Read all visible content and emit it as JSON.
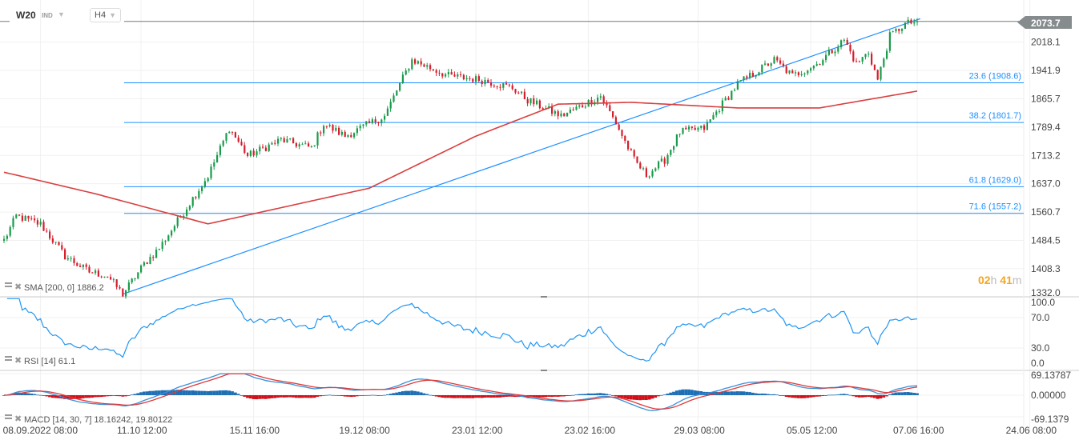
{
  "header": {
    "symbol": "W20",
    "type": "IND",
    "timeframe": "H4"
  },
  "countdown": {
    "hours": "02",
    "h": "h",
    "minutes": "41",
    "m": "m"
  },
  "last_price_label": "2073.7",
  "legends": {
    "sma": "SMA [200, 0] 1886.2",
    "rsi": "RSI [14] 61.1",
    "macd": "MACD [14, 30, 7] 18.16242, 19.80122"
  },
  "colors": {
    "up": "#1a9b4b",
    "down": "#d61e2d",
    "sma": "#d93f3f",
    "rsi": "#2196f3",
    "fib": "#1e90ff",
    "macd": "#3a8fd8",
    "signal": "#e03a3a"
  },
  "chart_data": [
    {
      "type": "candlestick",
      "title": "W20 H4",
      "ylim": [
        1332.0,
        2073.7
      ],
      "y_ticks": [
        "2018.1",
        "1941.9",
        "1865.7",
        "1789.4",
        "1713.2",
        "1637.0",
        "1560.7",
        "1484.5",
        "1408.3",
        "1332.0"
      ],
      "y_tick_values": [
        2018.1,
        1941.9,
        1865.7,
        1789.4,
        1713.2,
        1637.0,
        1560.7,
        1484.5,
        1408.3,
        1332.0
      ],
      "x_ticks": [
        "08.09.2022  08:00",
        "11.10  12:00",
        "15.11  16:00",
        "19.12  08:00",
        "23.01  12:00",
        "23.02  16:00",
        "29.03  08:00",
        "05.05  12:00",
        "07.06  16:00",
        "24.06  08:00"
      ],
      "x_tick_bars": [
        12,
        45,
        82,
        118,
        155,
        192,
        228,
        265,
        300,
        337
      ],
      "bars": 301,
      "price_path": [
        [
          0,
          1485
        ],
        [
          4,
          1550
        ],
        [
          12,
          1528
        ],
        [
          20,
          1442
        ],
        [
          28,
          1400
        ],
        [
          34,
          1389
        ],
        [
          39,
          1340
        ],
        [
          46,
          1421
        ],
        [
          51,
          1464
        ],
        [
          59,
          1561
        ],
        [
          67,
          1658
        ],
        [
          74,
          1787
        ],
        [
          80,
          1712
        ],
        [
          91,
          1755
        ],
        [
          101,
          1733
        ],
        [
          105,
          1798
        ],
        [
          112,
          1765
        ],
        [
          125,
          1819
        ],
        [
          130,
          1905
        ],
        [
          134,
          1970
        ],
        [
          146,
          1927
        ],
        [
          157,
          1916
        ],
        [
          167,
          1895
        ],
        [
          172,
          1862
        ],
        [
          183,
          1819
        ],
        [
          196,
          1873
        ],
        [
          201,
          1800
        ],
        [
          207,
          1701
        ],
        [
          211,
          1660
        ],
        [
          217,
          1701
        ],
        [
          222,
          1776
        ],
        [
          230,
          1786
        ],
        [
          236,
          1852
        ],
        [
          241,
          1905
        ],
        [
          253,
          1970
        ],
        [
          259,
          1927
        ],
        [
          267,
          1959
        ],
        [
          276,
          2024
        ],
        [
          280,
          1959
        ],
        [
          284,
          1991
        ],
        [
          287,
          1916
        ],
        [
          291,
          2034
        ],
        [
          296,
          2067
        ],
        [
          300,
          2073.7
        ]
      ],
      "sma200": [
        [
          0,
          1668
        ],
        [
          30,
          1610
        ],
        [
          67,
          1529
        ],
        [
          120,
          1625
        ],
        [
          155,
          1765
        ],
        [
          182,
          1851
        ],
        [
          206,
          1856
        ],
        [
          241,
          1841
        ],
        [
          268,
          1841
        ],
        [
          300,
          1886.2
        ]
      ],
      "current_price": 2073.7,
      "fib_levels": [
        {
          "label": "23.6 (1908.6)",
          "value": 1908.6
        },
        {
          "label": "38.2 (1801.7)",
          "value": 1801.7
        },
        {
          "label": "61.8 (1629.0)",
          "value": 1629.0
        },
        {
          "label": "71.6 (1557.2)",
          "value": 1557.2
        }
      ],
      "trendline": [
        [
          39,
          1340
        ],
        [
          301,
          2081
        ]
      ]
    },
    {
      "type": "line",
      "title": "RSI [14]",
      "last": 61.1,
      "y_ticks": [
        "100.0",
        "70.0",
        "30.0",
        "0.0"
      ],
      "ylim": [
        0,
        100
      ]
    },
    {
      "type": "bar+line",
      "title": "MACD [14, 30, 7]",
      "macd": 18.16242,
      "signal": 19.80122,
      "y_ticks": [
        "69.13787",
        "0.00000",
        "-69.1379"
      ],
      "ylim": [
        -69.1379,
        69.13787
      ]
    }
  ]
}
